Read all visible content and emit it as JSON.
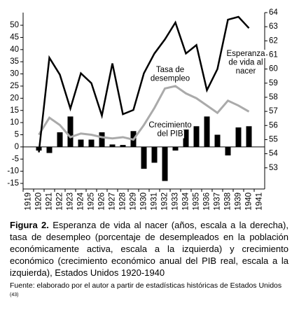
{
  "chart_data": {
    "type": "combo",
    "categories": [
      "1919",
      "1920",
      "1921",
      "1922",
      "1923",
      "1924",
      "1925",
      "1926",
      "1927",
      "1928",
      "1929",
      "1930",
      "1931",
      "1932",
      "1933",
      "1934",
      "1935",
      "1936",
      "1937",
      "1938",
      "1939",
      "1940",
      "1941"
    ],
    "series": [
      {
        "type": "bar",
        "axis": "y",
        "color": "#000000",
        "values": [
          null,
          -1.5,
          -2.5,
          6,
          12.5,
          3,
          3,
          6,
          1,
          0.8,
          6.5,
          -9,
          -6.5,
          -14,
          -1.5,
          10.5,
          8.5,
          12.5,
          5,
          -3.5,
          8,
          8.5,
          null
        ]
      },
      {
        "type": "line",
        "axis": "y",
        "color": "#aaaaaa",
        "values": [
          null,
          5,
          12,
          9,
          4,
          5.5,
          5,
          4,
          3.5,
          4,
          3,
          9,
          16,
          24,
          25,
          22,
          20,
          17,
          14,
          19,
          17,
          14.5,
          null
        ]
      },
      {
        "type": "line",
        "axis": "y2",
        "color": "#000000",
        "values": [
          null,
          54.1,
          60.8,
          59.6,
          57.2,
          59.7,
          59.0,
          56.7,
          60.4,
          56.8,
          57.1,
          59.7,
          61.1,
          62.1,
          63.3,
          61.1,
          61.7,
          58.5,
          60.0,
          63.5,
          63.7,
          62.9,
          null
        ]
      }
    ],
    "ylim": [
      -17.3,
      55.2
    ],
    "yticks": [
      -15,
      -10,
      -5,
      0,
      5,
      10,
      15,
      20,
      25,
      30,
      35,
      40,
      45,
      50
    ],
    "y2lim": [
      51.5,
      64
    ],
    "y2ticks": [
      53,
      54,
      55,
      56,
      57,
      58,
      59,
      60,
      61,
      62,
      63,
      64
    ],
    "annotations": [
      [
        "Tasa de",
        "desempleo"
      ],
      [
        "Crecimiento",
        "del PIB"
      ],
      [
        "Esperanza",
        "de vida al",
        "nacer"
      ]
    ]
  },
  "caption": {
    "label": "Figura 2.",
    "text": "Esperanza de vida al nacer (años, escala a la derecha), tasa de desempleo (porcentaje de desempleados en la población económicamente activa, escala a la izquierda) y crecimiento económico (crecimiento económico anual del PIB real, escala a la izquierda), Estados Unidos 1920-1940"
  },
  "source": {
    "text": "Fuente: elaborado por el autor a partir de estadísticas históricas de Estados Unidos",
    "ref": "(43)"
  }
}
